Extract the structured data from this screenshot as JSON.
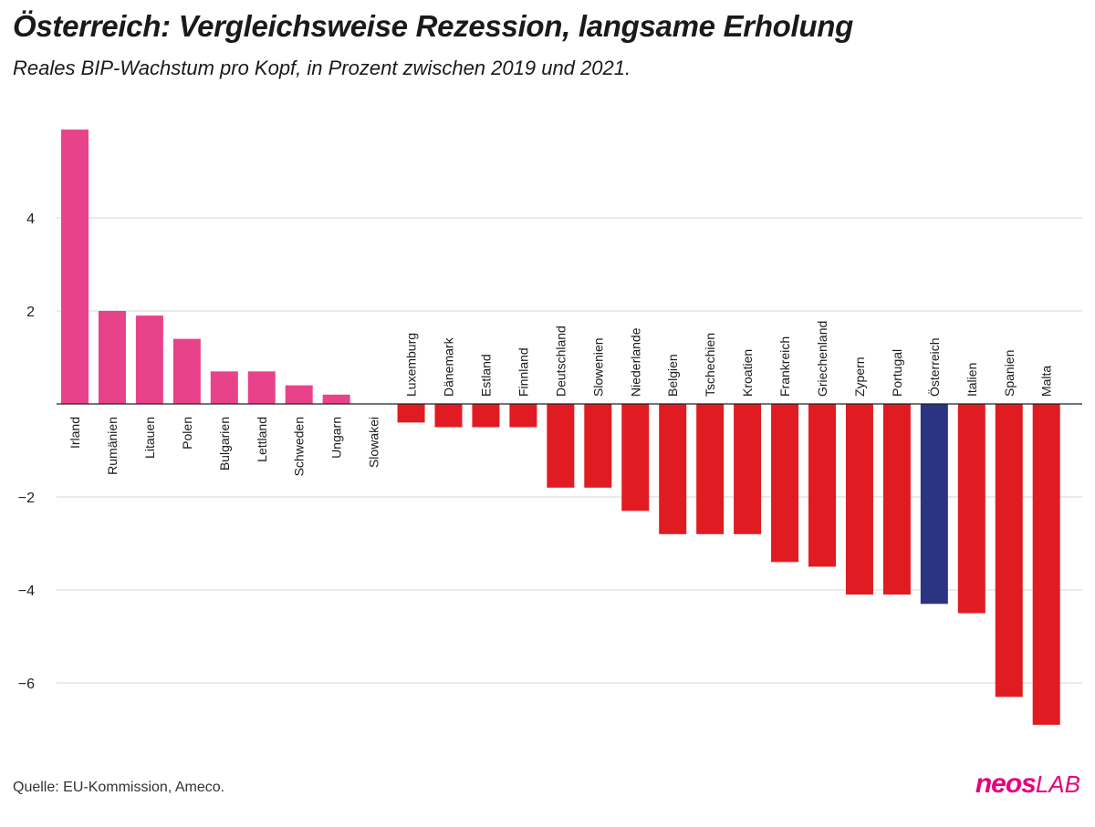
{
  "title": "Österreich: Vergleichsweise Rezession, langsame Erholung",
  "subtitle": "Reales BIP-Wachstum pro Kopf, in Prozent zwischen 2019 und 2021.",
  "source": "Quelle: EU-Kommission, Ameco.",
  "logo": {
    "neos": "neos",
    "lab": "LAB"
  },
  "colors": {
    "positive": "#e8438a",
    "negative": "#e11b22",
    "highlight": "#2b3481",
    "grid": "#d4d4d4",
    "axis": "#222222"
  },
  "chart_data": {
    "type": "bar",
    "title": "Österreich: Vergleichsweise Rezession, langsame Erholung",
    "subtitle": "Reales BIP-Wachstum pro Kopf, in Prozent zwischen 2019 und 2021.",
    "xlabel": "",
    "ylabel": "",
    "ylim": [
      -7.5,
      6.2
    ],
    "yticks": [
      4,
      2,
      -2,
      -4,
      -6
    ],
    "ytick_labels": [
      "4",
      "2",
      "−2",
      "−4",
      "−6"
    ],
    "grid": true,
    "highlight": "Österreich",
    "categories": [
      "Irland",
      "Rumänien",
      "Litauen",
      "Polen",
      "Bulgarien",
      "Lettland",
      "Schweden",
      "Ungarn",
      "Slowakei",
      "Luxemburg",
      "Dänemark",
      "Estland",
      "Finnland",
      "Deutschland",
      "Slowenien",
      "Niederlande",
      "Belgien",
      "Tschechien",
      "Kroatien",
      "Frankreich",
      "Griechenland",
      "Zypern",
      "Portugal",
      "Österreich",
      "Italien",
      "Spanien",
      "Malta"
    ],
    "values": [
      5.9,
      2.0,
      1.9,
      1.4,
      0.7,
      0.7,
      0.4,
      0.2,
      0.0,
      -0.4,
      -0.5,
      -0.5,
      -0.5,
      -1.8,
      -1.8,
      -2.3,
      -2.8,
      -2.8,
      -2.8,
      -3.4,
      -3.5,
      -4.1,
      -4.1,
      -4.3,
      -4.5,
      -6.3,
      -6.9
    ]
  }
}
